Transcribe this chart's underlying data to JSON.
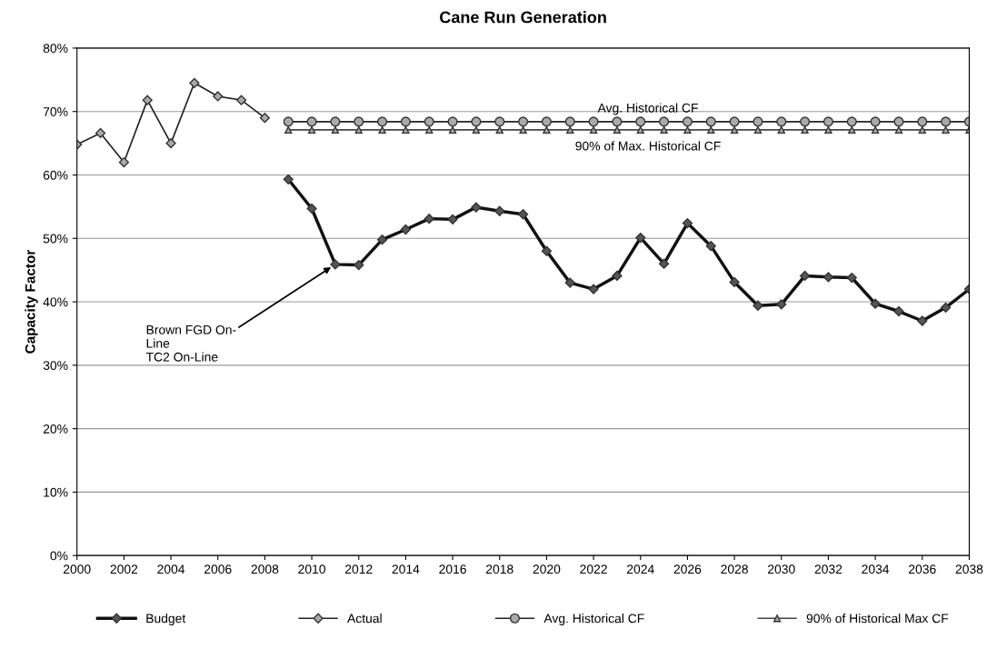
{
  "chart_data": {
    "type": "line",
    "title": "Cane Run Generation",
    "ylabel": "Capacity Factor",
    "x": [
      2000,
      2001,
      2002,
      2003,
      2004,
      2005,
      2006,
      2007,
      2008,
      2009,
      2010,
      2011,
      2012,
      2013,
      2014,
      2015,
      2016,
      2017,
      2018,
      2019,
      2020,
      2021,
      2022,
      2023,
      2024,
      2025,
      2026,
      2027,
      2028,
      2029,
      2030,
      2031,
      2032,
      2033,
      2034,
      2035,
      2036,
      2037,
      2038
    ],
    "series": [
      {
        "name": "Budget",
        "color": "#111111",
        "marker": "diamond",
        "values": [
          null,
          null,
          null,
          null,
          null,
          null,
          null,
          null,
          null,
          59.3,
          54.7,
          45.9,
          45.8,
          49.8,
          51.4,
          53.1,
          53.0,
          54.9,
          54.3,
          53.8,
          48.0,
          43.0,
          42.0,
          44.1,
          50.1,
          46.0,
          52.4,
          48.8,
          43.1,
          39.4,
          39.6,
          44.1,
          43.9,
          43.8,
          39.7,
          38.5,
          37.0,
          39.1,
          42.0
        ]
      },
      {
        "name": "Actual",
        "color": "#222222",
        "marker": "diamond",
        "values": [
          64.8,
          66.6,
          62.0,
          71.8,
          65.0,
          74.5,
          72.4,
          71.8,
          69.0,
          null,
          null,
          null,
          null,
          null,
          null,
          null,
          null,
          null,
          null,
          null,
          null,
          null,
          null,
          null,
          null,
          null,
          null,
          null,
          null,
          null,
          null,
          null,
          null,
          null,
          null,
          null,
          null,
          null,
          null
        ]
      },
      {
        "name": "Avg. Historical CF",
        "color": "#222222",
        "marker": "circle",
        "values": [
          null,
          null,
          null,
          null,
          null,
          null,
          null,
          null,
          null,
          68.4,
          68.4,
          68.4,
          68.4,
          68.4,
          68.4,
          68.4,
          68.4,
          68.4,
          68.4,
          68.4,
          68.4,
          68.4,
          68.4,
          68.4,
          68.4,
          68.4,
          68.4,
          68.4,
          68.4,
          68.4,
          68.4,
          68.4,
          68.4,
          68.4,
          68.4,
          68.4,
          68.4,
          68.4,
          68.4
        ]
      },
      {
        "name": "90% of Historical Max CF",
        "color": "#444444",
        "marker": "triangle",
        "values": [
          null,
          null,
          null,
          null,
          null,
          null,
          null,
          null,
          null,
          67.1,
          67.1,
          67.1,
          67.1,
          67.1,
          67.1,
          67.1,
          67.1,
          67.1,
          67.1,
          67.1,
          67.1,
          67.1,
          67.1,
          67.1,
          67.1,
          67.1,
          67.1,
          67.1,
          67.1,
          67.1,
          67.1,
          67.1,
          67.1,
          67.1,
          67.1,
          67.1,
          67.1,
          67.1,
          67.1
        ]
      }
    ],
    "xlim": [
      2000,
      2038
    ],
    "xticks": [
      2000,
      2002,
      2004,
      2006,
      2008,
      2010,
      2012,
      2014,
      2016,
      2018,
      2020,
      2022,
      2024,
      2026,
      2028,
      2030,
      2032,
      2034,
      2036,
      2038
    ],
    "ylim": [
      0,
      80
    ],
    "yticks": [
      {
        "value": 0,
        "label": "0%"
      },
      {
        "value": 10,
        "label": "10%"
      },
      {
        "value": 20,
        "label": "20%"
      },
      {
        "value": 30,
        "label": "30%"
      },
      {
        "value": 40,
        "label": "40%"
      },
      {
        "value": 50,
        "label": "50%"
      },
      {
        "value": 60,
        "label": "60%"
      },
      {
        "value": 70,
        "label": "70%"
      },
      {
        "value": 80,
        "label": "80%"
      }
    ],
    "grid": "y",
    "legend": "bottom",
    "annotations": [
      "Avg. Historical CF",
      "90% of Max. Historical CF",
      {
        "text": "Brown FGD On-\nLine\nTC2 On-Line",
        "x": 2011,
        "y": 45.9
      }
    ]
  }
}
